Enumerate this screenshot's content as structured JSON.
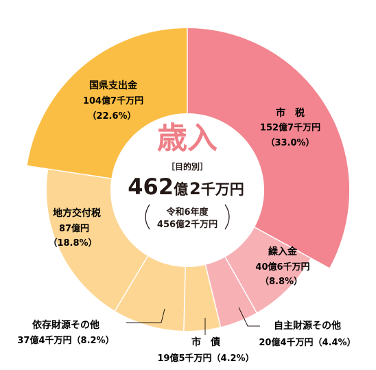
{
  "chart_data": {
    "type": "pie",
    "center_title": "歳入",
    "center_subtitle": "［目的別］",
    "total": {
      "number": "462",
      "unit1": "億",
      "digit": "2",
      "unit2": "千万円"
    },
    "previous": {
      "year_label": "令和6年度",
      "amount": "456億2千万円"
    },
    "slices": [
      {
        "name": "市　税",
        "amount": "152億7千万円",
        "share_label": "（33.0%）",
        "percent": 33.0,
        "color": "#f2858f"
      },
      {
        "name": "繰入金",
        "amount": "40億6千万円",
        "share_label": "（8.8%）",
        "percent": 8.8,
        "color": "#f7b1b5"
      },
      {
        "name": "自主財源その他",
        "amount": "20億4千万円（4.4%）",
        "share_label": "",
        "percent": 4.4,
        "color": "#f7b1b5"
      },
      {
        "name": "市　債",
        "amount": "19億5千万円（4.2%）",
        "share_label": "",
        "percent": 4.2,
        "color": "#fdd694"
      },
      {
        "name": "依存財源その他",
        "amount": "37億4千万円（8.2%）",
        "share_label": "",
        "percent": 8.2,
        "color": "#fdd694"
      },
      {
        "name": "地方交付税",
        "amount": "87億円",
        "share_label": "（18.8%）",
        "percent": 18.8,
        "color": "#fdd694"
      },
      {
        "name": "国県支出金",
        "amount": "104億7千万円",
        "share_label": "（22.6%）",
        "percent": 22.6,
        "color": "#fbbe45"
      }
    ]
  }
}
